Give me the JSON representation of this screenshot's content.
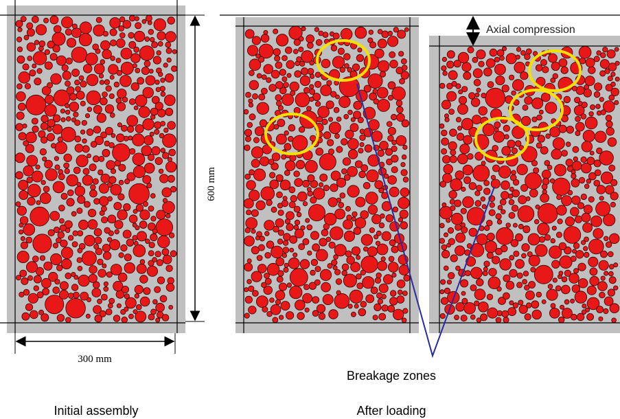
{
  "dimensions": {
    "height": "600 mm",
    "width": "300 mm"
  },
  "annotations": {
    "compression": "Axial compression",
    "breakage": "Breakage zones"
  },
  "captions": {
    "initial": "Initial assembly",
    "after": "After loading"
  }
}
